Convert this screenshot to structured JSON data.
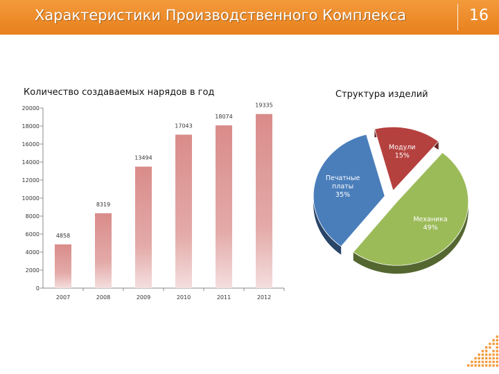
{
  "header": {
    "title": "Характеристики Производственного Комплекса",
    "page_number": "16"
  },
  "colors": {
    "header": "#f0902c",
    "bar": "#d98c8a",
    "pie_modules": "#b5413f",
    "pie_boards": "#4a7ebb",
    "pie_mechanics": "#9bbb59"
  },
  "chart_data": [
    {
      "type": "bar",
      "title": "Количество создаваемых нарядов  в год",
      "categories": [
        "2007",
        "2008",
        "2009",
        "2010",
        "2011",
        "2012"
      ],
      "values": [
        4858,
        8319,
        13494,
        17043,
        18074,
        19335
      ],
      "ylim": [
        0,
        20000
      ],
      "yticks": [
        0,
        2000,
        4000,
        6000,
        8000,
        10000,
        12000,
        14000,
        16000,
        18000,
        20000
      ],
      "xlabel": "",
      "ylabel": "",
      "grid": false,
      "data_labels": true
    },
    {
      "type": "pie",
      "title": "Структура изделий",
      "slices": [
        {
          "label_line1": "Модули",
          "label_line2": "15%",
          "value": 15,
          "color_key": "pie_modules"
        },
        {
          "label_line1": "Механика",
          "label_line2": "49%",
          "value": 49,
          "color_key": "pie_mechanics"
        },
        {
          "label_line1": "Печатные платы",
          "label_line2": "35%",
          "value": 35,
          "color_key": "pie_boards"
        }
      ]
    }
  ]
}
